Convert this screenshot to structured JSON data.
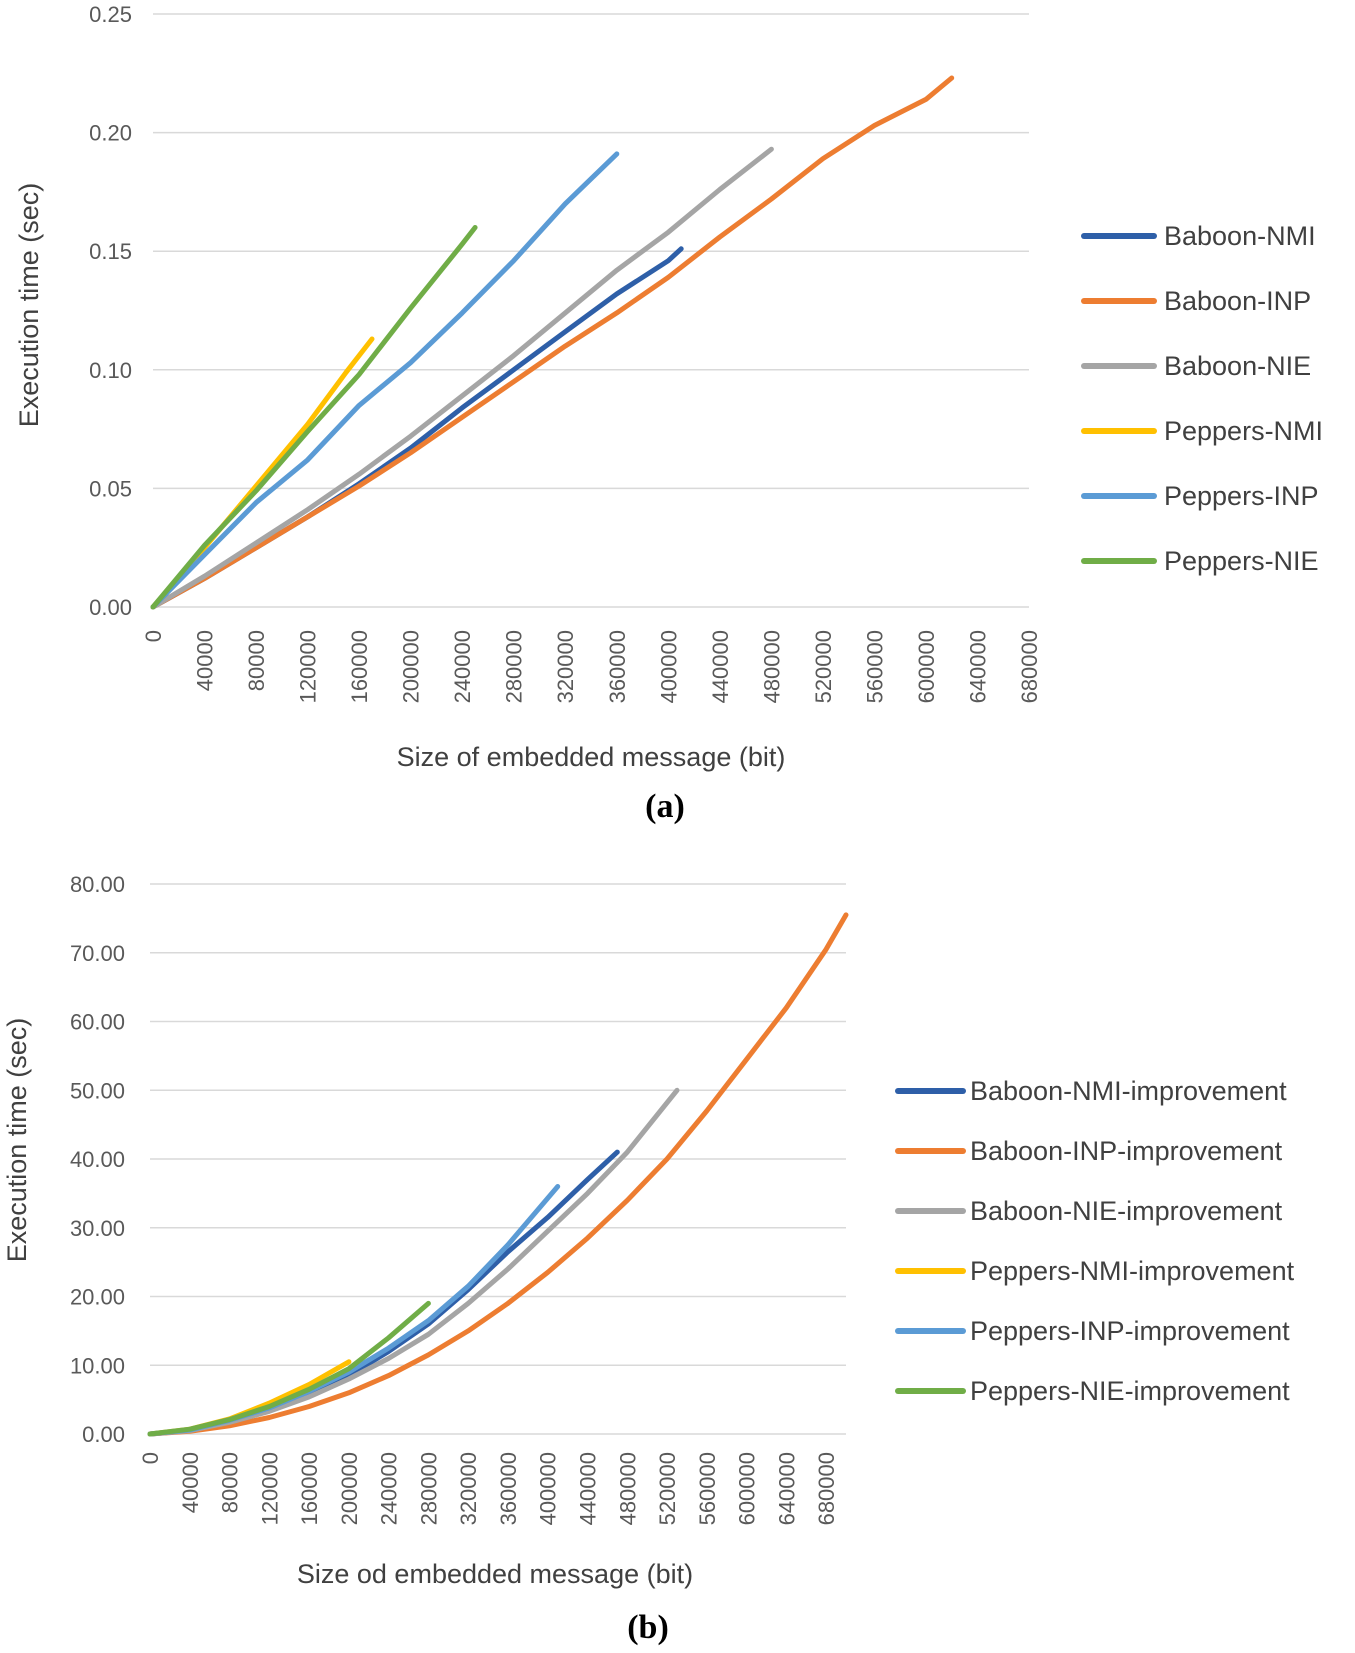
{
  "colors": {
    "NMI_baboon": "#2e5fa8",
    "INP_baboon": "#ed7d31",
    "NIE_baboon": "#a5a5a5",
    "NMI_peppers": "#ffc000",
    "INP_peppers": "#5b9bd5",
    "NIE_peppers": "#70ad47"
  },
  "chart_data": [
    {
      "type": "line",
      "panel_label": "(a)",
      "xlabel": "Size of embedded message (bit)",
      "ylabel": "Execution time (sec)",
      "xlim": [
        0,
        680000
      ],
      "ylim": [
        0,
        0.25
      ],
      "x_ticks": [
        "0",
        "40000",
        "80000",
        "120000",
        "160000",
        "200000",
        "240000",
        "280000",
        "320000",
        "360000",
        "400000",
        "440000",
        "480000",
        "520000",
        "560000",
        "600000",
        "640000",
        "680000"
      ],
      "y_ticks": [
        "0.00",
        "0.05",
        "0.10",
        "0.15",
        "0.20",
        "0.25"
      ],
      "grid": true,
      "legend_position": "right",
      "series": [
        {
          "name": "Baboon-NMI",
          "color": "#2e5fa8",
          "x": [
            0,
            40000,
            80000,
            120000,
            160000,
            200000,
            240000,
            280000,
            320000,
            360000,
            400000,
            410000
          ],
          "y": [
            0,
            0.012,
            0.025,
            0.038,
            0.052,
            0.067,
            0.084,
            0.1,
            0.116,
            0.132,
            0.146,
            0.151
          ]
        },
        {
          "name": "Baboon-INP",
          "color": "#ed7d31",
          "x": [
            0,
            40000,
            80000,
            120000,
            160000,
            200000,
            240000,
            280000,
            320000,
            360000,
            400000,
            440000,
            480000,
            520000,
            560000,
            600000,
            620000
          ],
          "y": [
            0,
            0.012,
            0.025,
            0.038,
            0.051,
            0.065,
            0.08,
            0.095,
            0.11,
            0.124,
            0.139,
            0.156,
            0.172,
            0.189,
            0.203,
            0.214,
            0.223
          ]
        },
        {
          "name": "Baboon-NIE",
          "color": "#a5a5a5",
          "x": [
            0,
            40000,
            80000,
            120000,
            160000,
            200000,
            240000,
            280000,
            320000,
            360000,
            400000,
            440000,
            480000
          ],
          "y": [
            0,
            0.013,
            0.027,
            0.041,
            0.056,
            0.072,
            0.089,
            0.106,
            0.124,
            0.142,
            0.158,
            0.176,
            0.193
          ]
        },
        {
          "name": "Peppers-NMI",
          "color": "#ffc000",
          "x": [
            0,
            40000,
            80000,
            120000,
            150000,
            170000
          ],
          "y": [
            0,
            0.025,
            0.051,
            0.077,
            0.099,
            0.113
          ]
        },
        {
          "name": "Peppers-INP",
          "color": "#5b9bd5",
          "x": [
            0,
            40000,
            80000,
            120000,
            160000,
            200000,
            240000,
            280000,
            320000,
            360000
          ],
          "y": [
            0,
            0.022,
            0.044,
            0.062,
            0.085,
            0.103,
            0.124,
            0.146,
            0.17,
            0.191
          ]
        },
        {
          "name": "Peppers-NIE",
          "color": "#70ad47",
          "x": [
            0,
            40000,
            80000,
            120000,
            160000,
            200000,
            240000,
            250000
          ],
          "y": [
            0,
            0.026,
            0.049,
            0.074,
            0.098,
            0.126,
            0.153,
            0.16
          ]
        }
      ]
    },
    {
      "type": "line",
      "panel_label": "(b)",
      "xlabel": "Size od embedded message (bit)",
      "ylabel": "Execution time (sec)",
      "xlim": [
        0,
        700000
      ],
      "ylim": [
        0,
        80
      ],
      "x_ticks": [
        "0",
        "40000",
        "80000",
        "120000",
        "160000",
        "200000",
        "240000",
        "280000",
        "320000",
        "360000",
        "400000",
        "440000",
        "480000",
        "520000",
        "560000",
        "600000",
        "640000",
        "680000"
      ],
      "y_ticks": [
        "0.00",
        "10.00",
        "20.00",
        "30.00",
        "40.00",
        "50.00",
        "60.00",
        "70.00",
        "80.00"
      ],
      "grid": true,
      "legend_position": "right",
      "series": [
        {
          "name": "Baboon-NMI-improvement",
          "color": "#2e5fa8",
          "x": [
            0,
            40000,
            80000,
            120000,
            160000,
            200000,
            240000,
            280000,
            320000,
            360000,
            400000,
            440000,
            470000
          ],
          "y": [
            0,
            0.5,
            1.8,
            3.5,
            5.8,
            8.5,
            12,
            16,
            21,
            26.5,
            31.5,
            37,
            41
          ]
        },
        {
          "name": "Baboon-INP-improvement",
          "color": "#ed7d31",
          "x": [
            0,
            40000,
            80000,
            120000,
            160000,
            200000,
            240000,
            280000,
            320000,
            360000,
            400000,
            440000,
            480000,
            520000,
            560000,
            600000,
            640000,
            680000,
            700000
          ],
          "y": [
            0,
            0.4,
            1.2,
            2.4,
            4,
            6,
            8.5,
            11.5,
            15,
            19,
            23.5,
            28.5,
            34,
            40,
            47,
            54.5,
            62,
            70.5,
            75.5
          ]
        },
        {
          "name": "Baboon-NIE-improvement",
          "color": "#a5a5a5",
          "x": [
            0,
            40000,
            80000,
            120000,
            160000,
            200000,
            240000,
            280000,
            320000,
            360000,
            400000,
            440000,
            480000,
            530000
          ],
          "y": [
            0,
            0.5,
            1.7,
            3.3,
            5.4,
            8,
            11,
            14.5,
            19,
            24,
            29.5,
            35,
            41,
            50
          ]
        },
        {
          "name": "Peppers-NMI-improvement",
          "color": "#ffc000",
          "x": [
            0,
            40000,
            80000,
            120000,
            160000,
            200000
          ],
          "y": [
            0,
            0.7,
            2.2,
            4.5,
            7.2,
            10.5
          ]
        },
        {
          "name": "Peppers-INP-improvement",
          "color": "#5b9bd5",
          "x": [
            0,
            40000,
            80000,
            120000,
            160000,
            200000,
            240000,
            280000,
            320000,
            360000,
            410000
          ],
          "y": [
            0,
            0.6,
            2,
            3.8,
            6.2,
            9,
            12.5,
            16.5,
            21.5,
            27.5,
            36
          ]
        },
        {
          "name": "Peppers-NIE-improvement",
          "color": "#70ad47",
          "x": [
            0,
            40000,
            80000,
            120000,
            160000,
            200000,
            240000,
            280000
          ],
          "y": [
            0,
            0.7,
            2.1,
            4,
            6.5,
            9.5,
            14,
            19
          ]
        }
      ]
    }
  ]
}
